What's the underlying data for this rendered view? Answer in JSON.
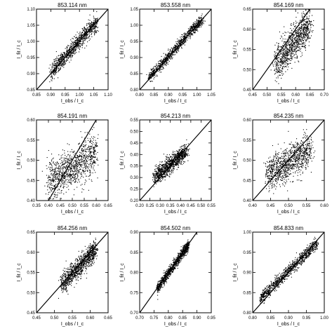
{
  "chart_data": [
    {
      "type": "scatter",
      "title": "853.114 nm",
      "xlabel": "I_obs / I_c",
      "ylabel": "I_fit / I_c",
      "xlim": [
        0.85,
        1.1
      ],
      "ylim": [
        0.85,
        1.1
      ],
      "xticks": [
        0.85,
        0.9,
        0.95,
        1.0,
        1.05,
        1.1
      ],
      "xtick_labels": [
        "0.85",
        "0.90",
        "0.95",
        "1.00",
        "1.05",
        "1.10"
      ],
      "yticks": [
        0.85,
        0.9,
        0.95,
        1.0,
        1.05,
        1.1
      ],
      "ytick_labels": [
        "0.85",
        "0.90",
        "0.95",
        "1.00",
        "1.05",
        "1.10"
      ],
      "identity_line": true,
      "cloud": [
        {
          "x": 0.9,
          "y": 0.905
        },
        {
          "x": 0.94,
          "y": 0.945
        },
        {
          "x": 0.98,
          "y": 0.985
        },
        {
          "x": 1.02,
          "y": 1.025
        },
        {
          "x": 1.06,
          "y": 1.06
        }
      ],
      "spread": 0.012
    },
    {
      "type": "scatter",
      "title": "853.558 nm",
      "xlabel": "I_obs / I_c",
      "ylabel": "I_fit / I_c",
      "xlim": [
        0.8,
        1.05
      ],
      "ylim": [
        0.8,
        1.05
      ],
      "xticks": [
        0.8,
        0.85,
        0.9,
        0.95,
        1.0,
        1.05
      ],
      "xtick_labels": [
        "0.80",
        "0.85",
        "0.90",
        "0.95",
        "1.00",
        "1.05"
      ],
      "yticks": [
        0.8,
        0.85,
        0.9,
        0.95,
        1.0,
        1.05
      ],
      "ytick_labels": [
        "0.80",
        "0.85",
        "0.90",
        "0.95",
        "1.00",
        "1.05"
      ],
      "identity_line": true,
      "cloud": [
        {
          "x": 0.83,
          "y": 0.835
        },
        {
          "x": 0.88,
          "y": 0.885
        },
        {
          "x": 0.93,
          "y": 0.935
        },
        {
          "x": 0.98,
          "y": 0.985
        },
        {
          "x": 1.02,
          "y": 1.02
        }
      ],
      "spread": 0.008
    },
    {
      "type": "scatter",
      "title": "854.169 nm",
      "xlabel": "I_obs / I_c",
      "ylabel": "I_fit / I_c",
      "xlim": [
        0.45,
        0.7
      ],
      "ylim": [
        0.45,
        0.65
      ],
      "xticks": [
        0.45,
        0.5,
        0.55,
        0.6,
        0.65,
        0.7
      ],
      "xtick_labels": [
        "0.45",
        "0.50",
        "0.55",
        "0.60",
        "0.65",
        "0.70"
      ],
      "yticks": [
        0.45,
        0.5,
        0.55,
        0.6,
        0.65
      ],
      "ytick_labels": [
        "0.45",
        "0.50",
        "0.55",
        "0.60",
        "0.65"
      ],
      "identity_line": true,
      "cloud": [
        {
          "x": 0.53,
          "y": 0.515
        },
        {
          "x": 0.56,
          "y": 0.54
        },
        {
          "x": 0.59,
          "y": 0.565
        },
        {
          "x": 0.62,
          "y": 0.59
        },
        {
          "x": 0.65,
          "y": 0.615
        }
      ],
      "spread": 0.02
    },
    {
      "type": "scatter",
      "title": "854.191 nm",
      "xlabel": "I_obs / I_c",
      "ylabel": "I_fit / I_c",
      "xlim": [
        0.35,
        0.65
      ],
      "ylim": [
        0.4,
        0.6
      ],
      "xticks": [
        0.35,
        0.4,
        0.45,
        0.5,
        0.55,
        0.6,
        0.65
      ],
      "xtick_labels": [
        "0.35",
        "0.40",
        "0.45",
        "0.50",
        "0.55",
        "0.60",
        "0.65"
      ],
      "yticks": [
        0.4,
        0.45,
        0.5,
        0.55,
        0.6
      ],
      "ytick_labels": [
        "0.40",
        "0.45",
        "0.50",
        "0.55",
        "0.60"
      ],
      "identity_line": true,
      "cloud": [
        {
          "x": 0.4,
          "y": 0.45
        },
        {
          "x": 0.45,
          "y": 0.465
        },
        {
          "x": 0.5,
          "y": 0.48
        },
        {
          "x": 0.55,
          "y": 0.5
        },
        {
          "x": 0.6,
          "y": 0.525
        }
      ],
      "spread": 0.025
    },
    {
      "type": "scatter",
      "title": "854.213 nm",
      "xlabel": "I_obs / I_c",
      "ylabel": "I_fit / I_c",
      "xlim": [
        0.2,
        0.55
      ],
      "ylim": [
        0.2,
        0.55
      ],
      "xticks": [
        0.2,
        0.25,
        0.3,
        0.35,
        0.4,
        0.45,
        0.5,
        0.55
      ],
      "xtick_labels": [
        "0.20",
        "0.25",
        "0.30",
        "0.35",
        "0.40",
        "0.45",
        "0.50",
        "0.55"
      ],
      "yticks": [
        0.2,
        0.25,
        0.3,
        0.35,
        0.4,
        0.45,
        0.5,
        0.55
      ],
      "ytick_labels": [
        "0.20",
        "0.25",
        "0.30",
        "0.35",
        "0.40",
        "0.45",
        "0.50",
        "0.55"
      ],
      "identity_line": true,
      "cloud": [
        {
          "x": 0.27,
          "y": 0.3
        },
        {
          "x": 0.31,
          "y": 0.33
        },
        {
          "x": 0.35,
          "y": 0.36
        },
        {
          "x": 0.39,
          "y": 0.39
        },
        {
          "x": 0.43,
          "y": 0.42
        }
      ],
      "spread": 0.018
    },
    {
      "type": "scatter",
      "title": "854.235 nm",
      "xlabel": "I_obs / I_c",
      "ylabel": "I_fit / I_c",
      "xlim": [
        0.4,
        0.6
      ],
      "ylim": [
        0.4,
        0.6
      ],
      "xticks": [
        0.4,
        0.45,
        0.5,
        0.55,
        0.6
      ],
      "xtick_labels": [
        "0.40",
        "0.45",
        "0.50",
        "0.55",
        "0.60"
      ],
      "yticks": [
        0.4,
        0.45,
        0.5,
        0.55,
        0.6
      ],
      "ytick_labels": [
        "0.40",
        "0.45",
        "0.50",
        "0.55",
        "0.60"
      ],
      "identity_line": true,
      "cloud": [
        {
          "x": 0.44,
          "y": 0.465
        },
        {
          "x": 0.47,
          "y": 0.48
        },
        {
          "x": 0.5,
          "y": 0.495
        },
        {
          "x": 0.53,
          "y": 0.51
        },
        {
          "x": 0.56,
          "y": 0.53
        }
      ],
      "spread": 0.02
    },
    {
      "type": "scatter",
      "title": "854.256 nm",
      "xlabel": "I_obs / I_c",
      "ylabel": "I_fit / I_c",
      "xlim": [
        0.45,
        0.65
      ],
      "ylim": [
        0.45,
        0.65
      ],
      "xticks": [
        0.45,
        0.5,
        0.55,
        0.6,
        0.65
      ],
      "xtick_labels": [
        "0.45",
        "0.50",
        "0.55",
        "0.60",
        "0.65"
      ],
      "yticks": [
        0.45,
        0.5,
        0.55,
        0.6,
        0.65
      ],
      "ytick_labels": [
        "0.45",
        "0.50",
        "0.55",
        "0.60",
        "0.65"
      ],
      "identity_line": true,
      "cloud": [
        {
          "x": 0.52,
          "y": 0.52
        },
        {
          "x": 0.545,
          "y": 0.545
        },
        {
          "x": 0.57,
          "y": 0.565
        },
        {
          "x": 0.595,
          "y": 0.59
        },
        {
          "x": 0.615,
          "y": 0.61
        }
      ],
      "spread": 0.012
    },
    {
      "type": "scatter",
      "title": "854.502 nm",
      "xlabel": "I_obs / I_c",
      "ylabel": "I_fit / I_c",
      "xlim": [
        0.7,
        0.95
      ],
      "ylim": [
        0.7,
        0.9
      ],
      "xticks": [
        0.7,
        0.75,
        0.8,
        0.85,
        0.9,
        0.95
      ],
      "xtick_labels": [
        "0.70",
        "0.75",
        "0.80",
        "0.85",
        "0.90",
        "0.95"
      ],
      "yticks": [
        0.7,
        0.75,
        0.8,
        0.85,
        0.9
      ],
      "ytick_labels": [
        "0.70",
        "0.75",
        "0.80",
        "0.85",
        "0.90"
      ],
      "identity_line": true,
      "cloud": [
        {
          "x": 0.76,
          "y": 0.76
        },
        {
          "x": 0.79,
          "y": 0.79
        },
        {
          "x": 0.82,
          "y": 0.82
        },
        {
          "x": 0.85,
          "y": 0.85
        },
        {
          "x": 0.87,
          "y": 0.87
        }
      ],
      "spread": 0.006
    },
    {
      "type": "scatter",
      "title": "854.833 nm",
      "xlabel": "I_obs / I_c",
      "ylabel": "I_fit / I_c",
      "xlim": [
        0.8,
        1.0
      ],
      "ylim": [
        0.8,
        1.0
      ],
      "xticks": [
        0.8,
        0.85,
        0.9,
        0.95,
        1.0
      ],
      "xtick_labels": [
        "0.80",
        "0.85",
        "0.90",
        "0.95",
        "1.00"
      ],
      "yticks": [
        0.8,
        0.85,
        0.9,
        0.95,
        1.0
      ],
      "ytick_labels": [
        "0.80",
        "0.85",
        "0.90",
        "0.95",
        "1.00"
      ],
      "identity_line": true,
      "cloud": [
        {
          "x": 0.82,
          "y": 0.835
        },
        {
          "x": 0.86,
          "y": 0.87
        },
        {
          "x": 0.9,
          "y": 0.905
        },
        {
          "x": 0.94,
          "y": 0.94
        },
        {
          "x": 0.98,
          "y": 0.975
        }
      ],
      "spread": 0.007
    }
  ]
}
